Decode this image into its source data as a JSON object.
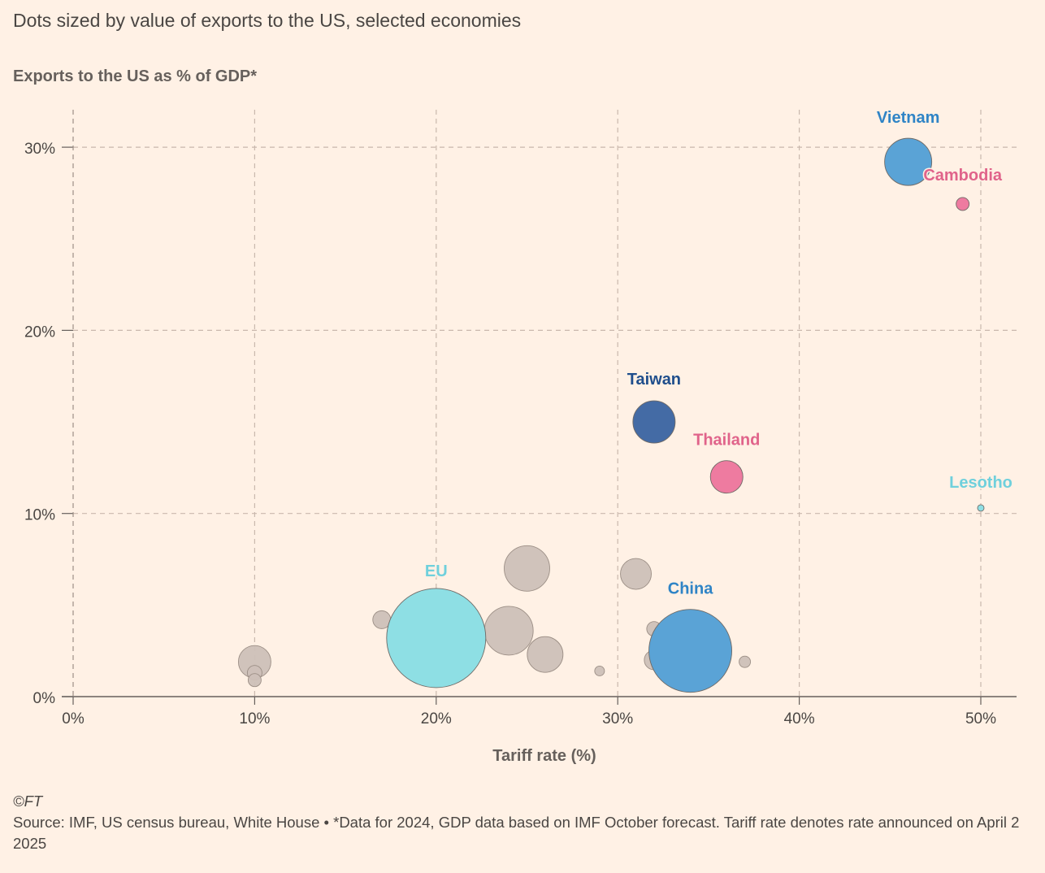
{
  "header": {
    "subtitle": "Dots sized by value of exports to the US, selected economies",
    "y_axis_title": "Exports to the US as % of GDP*"
  },
  "footer": {
    "copyright": "©FT",
    "source": "Source: IMF, US census bureau, White House • *Data for 2024, GDP data based on IMF October forecast. Tariff rate denotes rate announced on April 2 2025"
  },
  "chart_data": {
    "type": "scatter",
    "title": "Dots sized by value of exports to the US, selected economies",
    "xlabel": "Tariff rate (%)",
    "ylabel": "Exports to the US as % of GDP*",
    "xlim": [
      0,
      52
    ],
    "ylim": [
      0,
      32
    ],
    "x_ticks": [
      0,
      10,
      20,
      30,
      40,
      50
    ],
    "x_tick_labels": [
      "0%",
      "10%",
      "20%",
      "30%",
      "40%",
      "50%"
    ],
    "y_ticks": [
      0,
      10,
      20,
      30
    ],
    "y_tick_labels": [
      "0%",
      "10%",
      "20%",
      "30%"
    ],
    "grid": true,
    "size_note": "bubble area proportional to value of exports to the US",
    "colors": {
      "grey": "#cdc0b8",
      "eu": "#8edfe4",
      "china": "#5aa3d6",
      "vietnam": "#5aa3d6",
      "cambodia": "#ee7ba0",
      "thailand": "#ee7ba0",
      "taiwan": "#446ba5",
      "lesotho": "#8edfe4",
      "label_blue": "#2f84c6",
      "label_pink": "#e0638a",
      "label_navy": "#1f4e8c",
      "label_cyan": "#6fd0dc"
    },
    "points": [
      {
        "x": 10,
        "y": 1.9,
        "size": 20,
        "color": "grey"
      },
      {
        "x": 10,
        "y": 1.3,
        "size": 9,
        "color": "grey"
      },
      {
        "x": 10,
        "y": 0.9,
        "size": 8,
        "color": "grey"
      },
      {
        "x": 17,
        "y": 4.2,
        "size": 11,
        "color": "grey"
      },
      {
        "x": 24,
        "y": 3.6,
        "size": 30,
        "color": "grey"
      },
      {
        "x": 25,
        "y": 7.0,
        "size": 28,
        "color": "grey"
      },
      {
        "x": 26,
        "y": 2.3,
        "size": 22,
        "color": "grey"
      },
      {
        "x": 29,
        "y": 1.4,
        "size": 6,
        "color": "grey"
      },
      {
        "x": 31,
        "y": 6.7,
        "size": 19,
        "color": "grey"
      },
      {
        "x": 32,
        "y": 3.7,
        "size": 9,
        "color": "grey"
      },
      {
        "x": 32,
        "y": 2.0,
        "size": 12,
        "color": "grey"
      },
      {
        "x": 37,
        "y": 1.9,
        "size": 7,
        "color": "grey"
      },
      {
        "x": 20,
        "y": 3.2,
        "size": 61,
        "color": "eu",
        "label": "EU",
        "label_color": "label_cyan"
      },
      {
        "x": 34,
        "y": 2.5,
        "size": 51,
        "color": "china",
        "label": "China",
        "label_color": "label_blue"
      },
      {
        "x": 32,
        "y": 15.0,
        "size": 26,
        "color": "taiwan",
        "label": "Taiwan",
        "label_color": "label_navy"
      },
      {
        "x": 36,
        "y": 12.0,
        "size": 20,
        "color": "thailand",
        "label": "Thailand",
        "label_color": "label_pink"
      },
      {
        "x": 46,
        "y": 29.2,
        "size": 29,
        "color": "vietnam",
        "label": "Vietnam",
        "label_color": "label_blue"
      },
      {
        "x": 49,
        "y": 26.9,
        "size": 8,
        "color": "cambodia",
        "label": "Cambodia",
        "label_color": "label_pink"
      },
      {
        "x": 50,
        "y": 10.3,
        "size": 4,
        "color": "lesotho",
        "label": "Lesotho",
        "label_color": "label_cyan"
      }
    ]
  }
}
